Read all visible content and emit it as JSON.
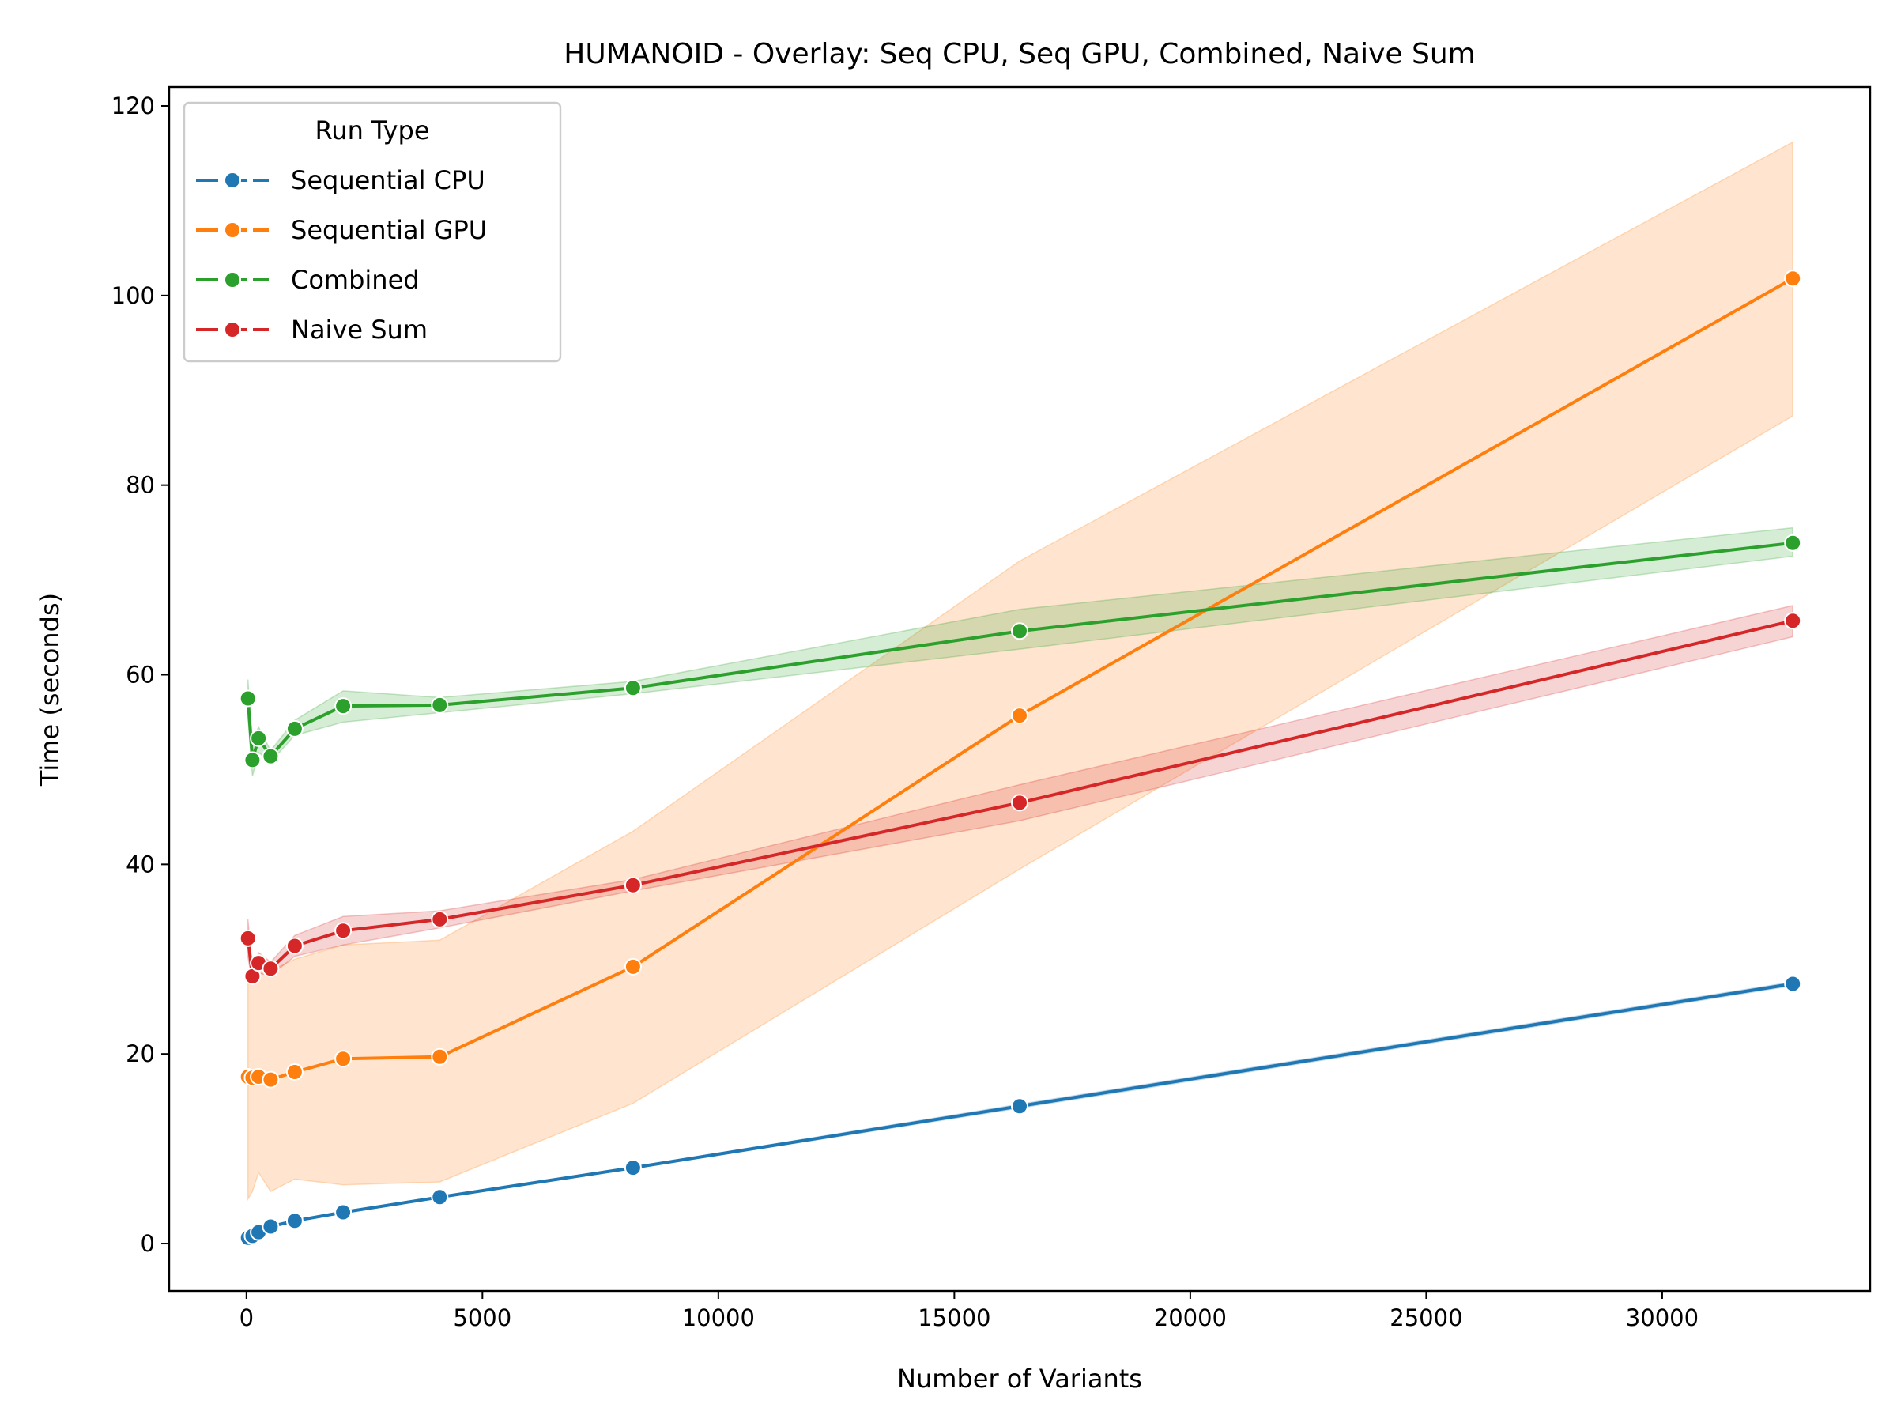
{
  "chart_data": {
    "type": "line",
    "title": "HUMANOID - Overlay: Seq CPU, Seq GPU, Combined, Naive Sum",
    "xlabel": "Number of Variants",
    "ylabel": "Time (seconds)",
    "xlim": [
      -1638,
      34406
    ],
    "ylim": [
      -5,
      122
    ],
    "xticks": [
      0,
      5000,
      10000,
      15000,
      20000,
      25000,
      30000
    ],
    "xtick_labels": [
      "0",
      "5000",
      "10000",
      "15000",
      "20000",
      "25000",
      "30000"
    ],
    "yticks": [
      0,
      20,
      40,
      60,
      80,
      100,
      120
    ],
    "ytick_labels": [
      "0",
      "20",
      "40",
      "60",
      "80",
      "100",
      "120"
    ],
    "grid": false,
    "legend": {
      "title": "Run Type",
      "position": "top-left",
      "entries": [
        "Sequential CPU",
        "Sequential GPU",
        "Combined",
        "Naive Sum"
      ]
    },
    "x": [
      32,
      128,
      256,
      512,
      1024,
      2048,
      4096,
      8192,
      16384,
      32768
    ],
    "series": [
      {
        "name": "Sequential CPU",
        "color": "#1f77b4",
        "values": [
          0.6,
          0.8,
          1.2,
          1.8,
          2.4,
          3.3,
          4.9,
          8.0,
          14.5,
          27.4
        ],
        "lower": [
          0.5,
          0.7,
          1.1,
          1.7,
          2.3,
          3.2,
          4.8,
          7.9,
          14.3,
          27.2
        ],
        "upper": [
          0.7,
          0.9,
          1.3,
          1.9,
          2.5,
          3.4,
          5.0,
          8.1,
          14.7,
          27.6
        ]
      },
      {
        "name": "Sequential GPU",
        "color": "#ff7f0e",
        "values": [
          17.6,
          17.5,
          17.6,
          17.3,
          18.1,
          19.5,
          19.7,
          29.2,
          55.7,
          101.8
        ],
        "lower": [
          4.7,
          5.5,
          7.5,
          5.5,
          6.8,
          6.2,
          6.5,
          14.8,
          39.5,
          87.3
        ],
        "upper": [
          27.5,
          28.2,
          29.0,
          28.8,
          30.0,
          31.5,
          32.0,
          43.5,
          72.0,
          116.2
        ]
      },
      {
        "name": "Combined",
        "color": "#2ca02c",
        "values": [
          57.5,
          51.0,
          53.3,
          51.4,
          54.3,
          56.7,
          56.8,
          58.6,
          64.6,
          73.9
        ],
        "lower": [
          55.5,
          49.3,
          51.8,
          50.8,
          53.6,
          55.0,
          56.0,
          58.0,
          62.7,
          72.5
        ],
        "upper": [
          59.5,
          53.0,
          54.5,
          52.0,
          55.2,
          58.3,
          57.6,
          59.3,
          66.9,
          75.5
        ]
      },
      {
        "name": "Naive Sum",
        "color": "#d62728",
        "values": [
          32.2,
          28.2,
          29.6,
          29.0,
          31.4,
          33.0,
          34.2,
          37.8,
          46.5,
          65.7
        ],
        "lower": [
          30.2,
          27.5,
          28.5,
          28.3,
          30.3,
          31.5,
          33.3,
          37.2,
          44.6,
          64.0
        ],
        "upper": [
          34.2,
          29.0,
          30.7,
          29.7,
          32.5,
          34.5,
          35.1,
          38.4,
          48.4,
          67.3
        ]
      }
    ]
  }
}
